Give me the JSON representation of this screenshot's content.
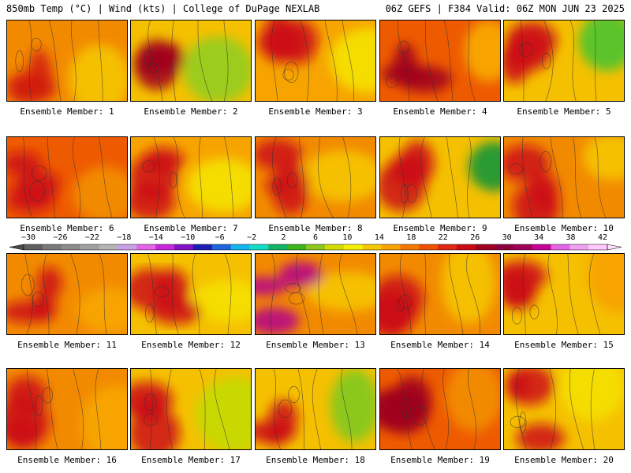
{
  "header": {
    "left": "850mb Temp (°C) | Wind (kts) | College of DuPage NEXLAB",
    "right": "06Z GEFS | F384 Valid: 06Z MON JUN 23 2025"
  },
  "member_label_prefix": "Ensemble Member: ",
  "members": [
    {
      "n": "1",
      "base": "#f28a00",
      "hot": "#d21e0a",
      "cool": "#f5c000"
    },
    {
      "n": "2",
      "base": "#f5c000",
      "hot": "#a0001e",
      "cool": "#9ccc1e"
    },
    {
      "n": "3",
      "base": "#f7a400",
      "hot": "#cc0a14",
      "cool": "#f5dd00"
    },
    {
      "n": "4",
      "base": "#ee5a00",
      "hot": "#a0001e",
      "cool": "#f7a400"
    },
    {
      "n": "5",
      "base": "#f5c000",
      "hot": "#cc0a14",
      "cool": "#5cc42a"
    },
    {
      "n": "6",
      "base": "#ee5a00",
      "hot": "#cc0a14",
      "cool": "#f28a00"
    },
    {
      "n": "7",
      "base": "#f7a400",
      "hot": "#cc0a14",
      "cool": "#f5dd00"
    },
    {
      "n": "8",
      "base": "#f28a00",
      "hot": "#cc0a14",
      "cool": "#f5c000"
    },
    {
      "n": "9",
      "base": "#f5c000",
      "hot": "#cc0a14",
      "cool": "#2c9a32"
    },
    {
      "n": "10",
      "base": "#f28a00",
      "hot": "#cc0a14",
      "cool": "#f5c000"
    },
    {
      "n": "11",
      "base": "#f28a00",
      "hot": "#cc0a14",
      "cool": "#f7a400"
    },
    {
      "n": "12",
      "base": "#f5c000",
      "hot": "#cc0a14",
      "cool": "#f5dd00"
    },
    {
      "n": "13",
      "base": "#f28a00",
      "hot": "#b4008c",
      "cool": "#f5c000"
    },
    {
      "n": "14",
      "base": "#f28a00",
      "hot": "#cc0a14",
      "cool": "#f5c000"
    },
    {
      "n": "15",
      "base": "#f5c000",
      "hot": "#cc0a14",
      "cool": "#f7a400"
    },
    {
      "n": "16",
      "base": "#f28a00",
      "hot": "#cc0a14",
      "cool": "#f7a400"
    },
    {
      "n": "17",
      "base": "#f5c000",
      "hot": "#cc0a14",
      "cool": "#c8d800"
    },
    {
      "n": "18",
      "base": "#f5c000",
      "hot": "#cc0a14",
      "cool": "#8cc81e"
    },
    {
      "n": "19",
      "base": "#ee5a00",
      "hot": "#a0001e",
      "cool": "#f28a00"
    },
    {
      "n": "20",
      "base": "#f5c000",
      "hot": "#cc0a14",
      "cool": "#f5dd00"
    }
  ],
  "colorbar": {
    "ticks": [
      "−30",
      "−26",
      "−22",
      "−18",
      "−14",
      "−10",
      "−6",
      "−2",
      "2",
      "6",
      "10",
      "14",
      "18",
      "22",
      "26",
      "30",
      "34",
      "38",
      "42"
    ],
    "colors": [
      "#606060",
      "#7a7a7a",
      "#8c8c8c",
      "#a0a0a0",
      "#b4b4b4",
      "#c8a0e6",
      "#e664e6",
      "#c828dc",
      "#8214c8",
      "#1e1eb4",
      "#1e64dc",
      "#14b4f0",
      "#14dcc8",
      "#14b464",
      "#3cb41e",
      "#8cc81e",
      "#d2dc00",
      "#f5f000",
      "#f5c800",
      "#f7a400",
      "#f57800",
      "#ee5000",
      "#e12814",
      "#cc0a14",
      "#a0001e",
      "#8c003c",
      "#a0005a",
      "#c80096",
      "#e664e6",
      "#f0a0f0",
      "#ffc8ff"
    ]
  }
}
